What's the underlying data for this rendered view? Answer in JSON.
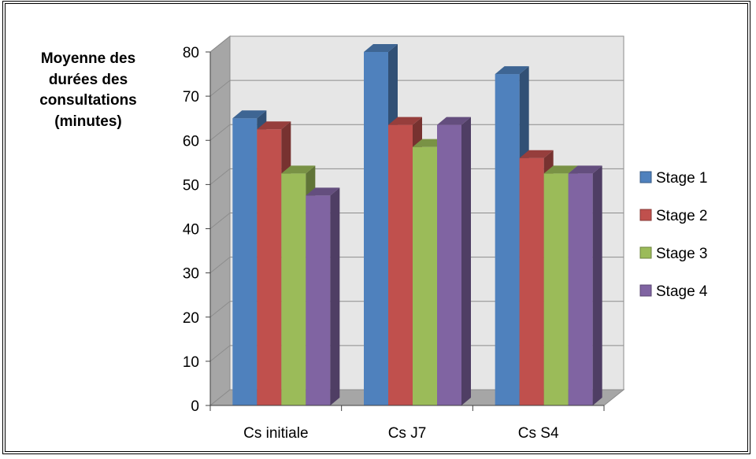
{
  "chart_data": {
    "type": "bar",
    "title": "",
    "ylabel": [
      "Moyenne des",
      "durées des",
      "consultations",
      "(minutes)"
    ],
    "xlabel": "",
    "categories": [
      "Cs initiale",
      "Cs  J7",
      "Cs S4"
    ],
    "ylim": [
      0,
      80
    ],
    "yticks": [
      0,
      10,
      20,
      30,
      40,
      50,
      60,
      70,
      80
    ],
    "grid": true,
    "legend_position": "right",
    "style": "3d-clustered-column",
    "series": [
      {
        "name": "Stage 1",
        "color": "#4F81BD",
        "values": [
          65,
          80,
          75
        ]
      },
      {
        "name": "Stage 2",
        "color": "#C0504D",
        "values": [
          62.5,
          63.5,
          56
        ]
      },
      {
        "name": "Stage 3",
        "color": "#9BBB59",
        "values": [
          52.5,
          58.5,
          52.5
        ]
      },
      {
        "name": "Stage 4",
        "color": "#8064A2",
        "values": [
          47.5,
          63.5,
          52.5
        ]
      }
    ]
  }
}
